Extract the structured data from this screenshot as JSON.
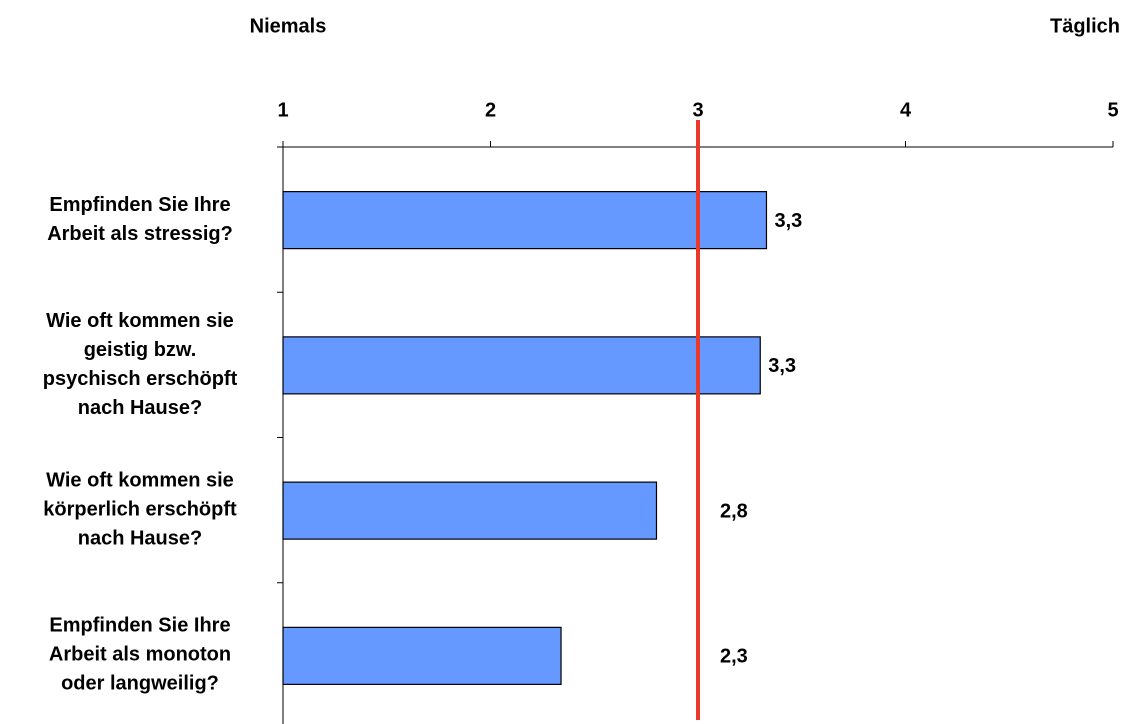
{
  "chart_data": {
    "type": "bar",
    "orientation": "horizontal",
    "annotations": [
      "Niemals",
      "Täglich"
    ],
    "categories": [
      "Empfinden Sie Ihre\nArbeit als stressig?",
      "Wie oft kommen sie\ngeistig bzw.\npsychisch erschöpft\nnach Hause?",
      "Wie oft kommen sie\nkörperlich erschöpft\nnach Hause?",
      "Empfinden Sie Ihre\nArbeit als monoton\noder langweilig?"
    ],
    "values": [
      3.33,
      3.3,
      2.8,
      2.34
    ],
    "value_labels": [
      "3,3",
      "3,3",
      "2,8",
      "2,3"
    ],
    "color": "#6699ff",
    "xlim": [
      1,
      5
    ],
    "xticks": [
      1,
      2,
      3,
      4,
      5
    ],
    "reference_line": {
      "value": 3,
      "color": "#e8392b"
    }
  }
}
